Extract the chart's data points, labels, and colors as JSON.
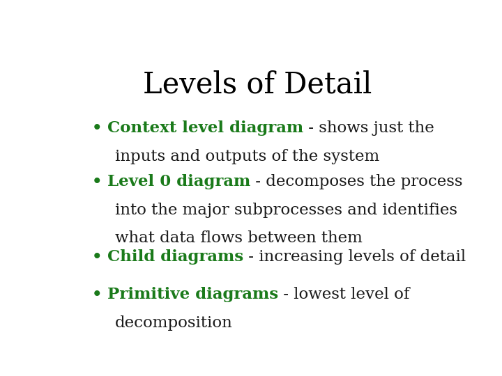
{
  "title": "Levels of Detail",
  "title_fontsize": 30,
  "title_color": "#000000",
  "background_color": "#ffffff",
  "green_color": "#1a7a1a",
  "black_color": "#1a1a1a",
  "body_fontsize": 16.5,
  "bullet_char": "•",
  "bullet_items": [
    {
      "bold_text": "Context level diagram",
      "rest_lines": [
        " - shows just the",
        "inputs and outputs of the system"
      ]
    },
    {
      "bold_text": "Level 0 diagram",
      "rest_lines": [
        " - decomposes the process",
        "into the major subprocesses and identifies",
        "what data flows between them"
      ]
    },
    {
      "bold_text": "Child diagrams",
      "rest_lines": [
        " - increasing levels of detail"
      ]
    },
    {
      "bold_text": "Primitive diagrams",
      "rest_lines": [
        " - lowest level of",
        "decomposition"
      ]
    }
  ]
}
